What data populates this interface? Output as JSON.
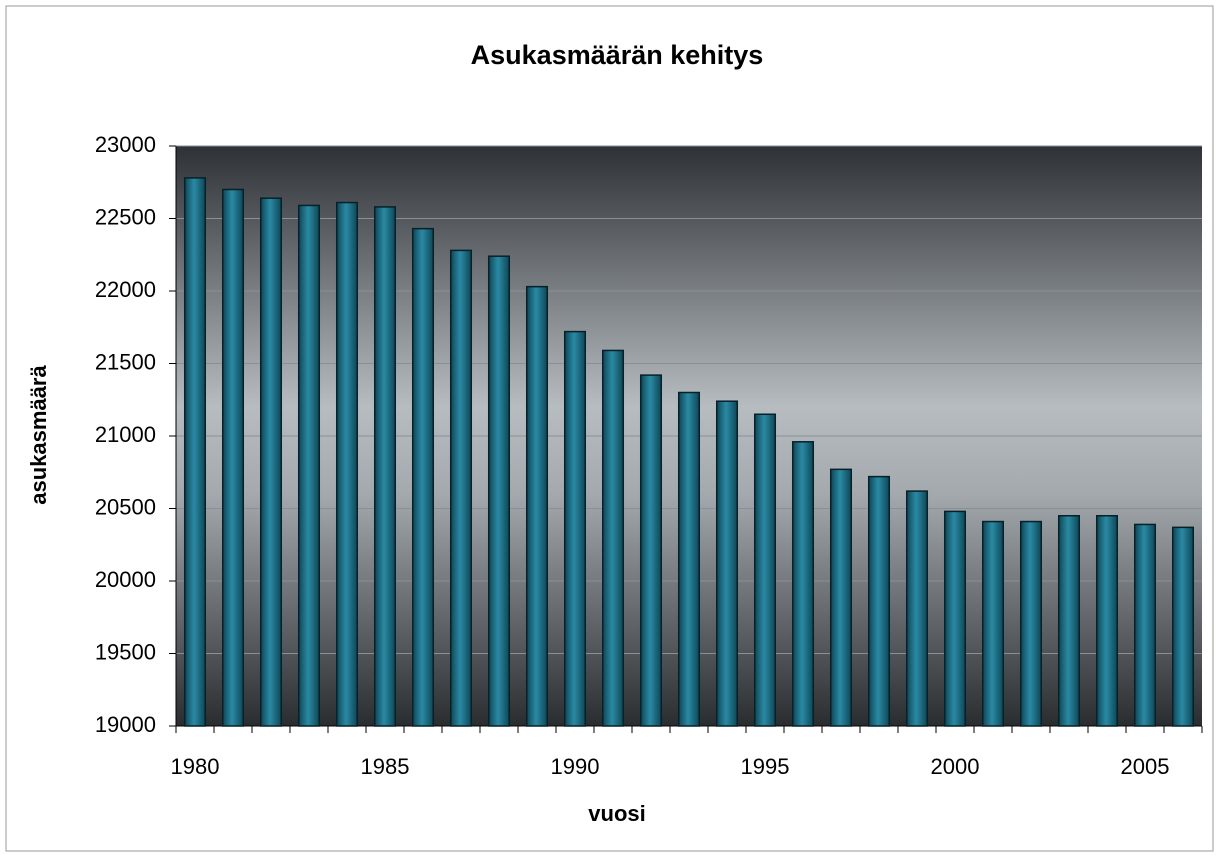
{
  "chart_data": {
    "type": "bar",
    "title": "Asukasmäärän kehitys",
    "x_label": "vuosi",
    "y_label": "asukasmäärä",
    "categories": [
      "1980",
      null,
      null,
      null,
      null,
      "1985",
      null,
      null,
      null,
      null,
      "1990",
      null,
      null,
      null,
      null,
      "1995",
      null,
      null,
      null,
      null,
      "2000",
      null,
      null,
      null,
      null,
      "2005",
      null
    ],
    "values": [
      22780,
      22700,
      22640,
      22590,
      22610,
      22580,
      22430,
      22280,
      22240,
      22030,
      21720,
      21590,
      21420,
      21300,
      21240,
      21150,
      20960,
      20770,
      20720,
      20620,
      20480,
      20410,
      20410,
      20450,
      20450,
      20390,
      20370
    ],
    "color": "#1f6f86",
    "ylim": [
      19000,
      23000
    ],
    "yticks": [
      19000,
      19500,
      20000,
      20500,
      21000,
      21500,
      22000,
      22500,
      23000
    ],
    "grid": true
  }
}
